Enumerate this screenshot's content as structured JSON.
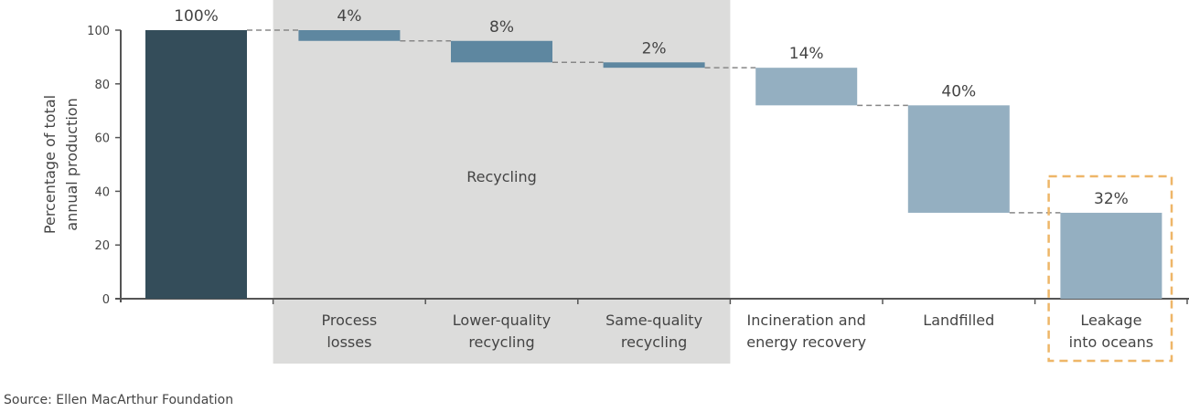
{
  "chart_data": {
    "type": "bar",
    "subtype": "waterfall",
    "ylabel": [
      "Percentage of total",
      "annual production"
    ],
    "ylim": [
      0,
      100
    ],
    "yticks": [
      0,
      20,
      40,
      60,
      80,
      100
    ],
    "grid": false,
    "categories": [
      {
        "label": [
          ""
        ],
        "start": 0,
        "end": 100,
        "value_label": "100%",
        "color": "#344d5a"
      },
      {
        "label": [
          "Process",
          "losses"
        ],
        "start": 96,
        "end": 100,
        "value_label": "4%",
        "color": "#5e87a0"
      },
      {
        "label": [
          "Lower-quality",
          "recycling"
        ],
        "start": 88,
        "end": 96,
        "value_label": "8%",
        "color": "#5e87a0"
      },
      {
        "label": [
          "Same-quality",
          "recycling"
        ],
        "start": 86,
        "end": 88,
        "value_label": "2%",
        "color": "#5e87a0"
      },
      {
        "label": [
          "Incineration and",
          "energy recovery"
        ],
        "start": 72,
        "end": 86,
        "value_label": "14%",
        "color": "#94afc1"
      },
      {
        "label": [
          "Landfilled"
        ],
        "start": 32,
        "end": 72,
        "value_label": "40%",
        "color": "#94afc1"
      },
      {
        "label": [
          "Leakage",
          "into oceans"
        ],
        "start": 0,
        "end": 32,
        "value_label": "32%",
        "color": "#94afc1"
      }
    ],
    "group_band": {
      "label": "Recycling",
      "categories": [
        1,
        2,
        3
      ],
      "color": "#dcdcdb"
    },
    "highlight": {
      "category": 6,
      "color": "#eeb668",
      "style": "dashed box"
    },
    "connector_color": "#888888"
  },
  "source": "Source: Ellen MacArthur Foundation"
}
